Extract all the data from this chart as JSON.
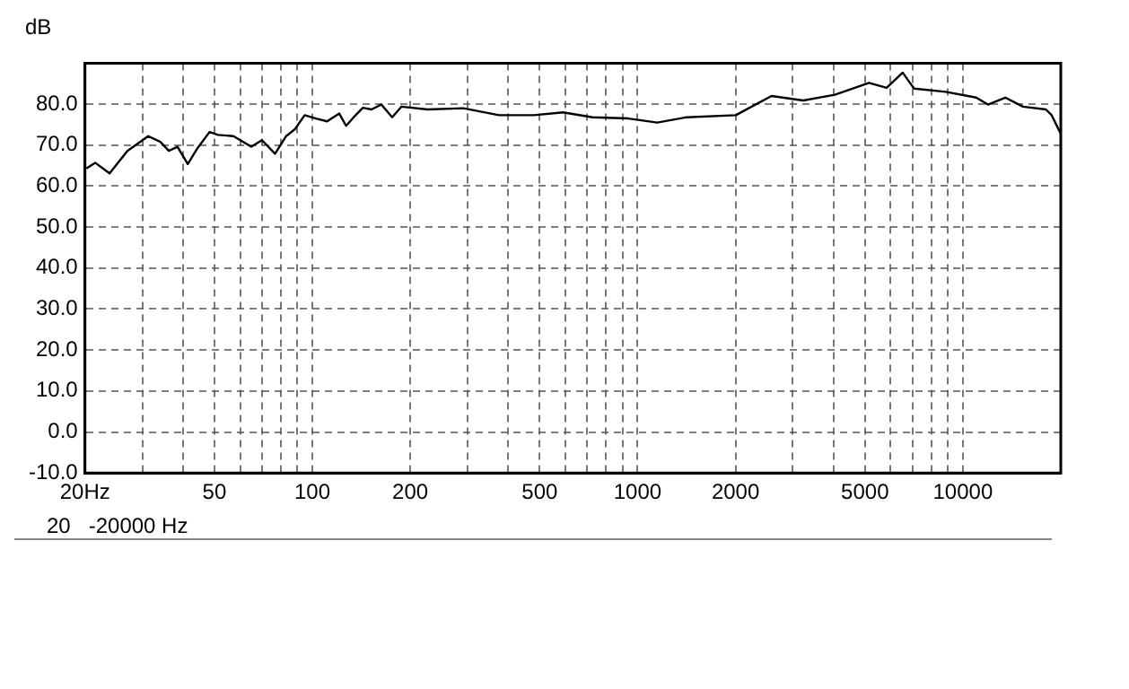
{
  "chart_data": {
    "type": "line",
    "ylabel": "dB",
    "annotations": [
      "20   -20000 Hz"
    ],
    "series": [
      {
        "color": "#000000",
        "x": [
          20.2,
          21.5,
          23.8,
          27,
          31.3,
          34.1,
          36.2,
          38.5,
          41.4,
          44.4,
          48.3,
          51.3,
          57.2,
          64.9,
          70,
          76.8,
          83.1,
          88.4,
          94.7,
          102.6,
          111,
          121,
          127,
          134,
          143,
          152,
          163,
          176,
          188,
          226,
          291,
          375,
          480,
          590,
          727,
          937,
          1150,
          1415,
          2004,
          2580,
          3230,
          4040,
          5145,
          5830,
          6530,
          7080,
          8865,
          10990,
          11940,
          13500,
          15300,
          18000,
          18750,
          19950
        ],
        "values": [
          64.3,
          65.7,
          63.1,
          68.6,
          72.2,
          70.8,
          68.6,
          69.6,
          65.4,
          69.3,
          73.2,
          72.5,
          72.2,
          69.6,
          71.2,
          67.9,
          72.2,
          73.9,
          77.3,
          76.5,
          75.8,
          77.7,
          74.7,
          76.8,
          79.1,
          78.7,
          79.9,
          76.8,
          79.4,
          78.7,
          79,
          77.3,
          77.3,
          78,
          76.8,
          76.5,
          75.5,
          76.8,
          77.3,
          82,
          80.9,
          82.3,
          85.2,
          84,
          87.7,
          83.8,
          83,
          81.6,
          79.9,
          81.6,
          79.4,
          78.7,
          77.3,
          72.9
        ]
      }
    ],
    "log": "x",
    "xlim": [
      20,
      20000
    ],
    "xticks": [
      {
        "value": 20,
        "label": "20Hz"
      },
      {
        "value": 30,
        "label": null
      },
      {
        "value": 40,
        "label": null
      },
      50,
      {
        "value": 60,
        "label": null
      },
      {
        "value": 70,
        "label": null
      },
      {
        "value": 80,
        "label": null
      },
      {
        "value": 90,
        "label": null
      },
      100,
      200,
      {
        "value": 300,
        "label": null
      },
      {
        "value": 400,
        "label": null
      },
      500,
      {
        "value": 600,
        "label": null
      },
      {
        "value": 700,
        "label": null
      },
      {
        "value": 800,
        "label": null
      },
      {
        "value": 900,
        "label": null
      },
      1000,
      2000,
      {
        "value": 3000,
        "label": null
      },
      {
        "value": 4000,
        "label": null
      },
      5000,
      {
        "value": 6000,
        "label": null
      },
      {
        "value": 7000,
        "label": null
      },
      {
        "value": 8000,
        "label": null
      },
      {
        "value": 9000,
        "label": null
      },
      10000,
      {
        "value": 20000,
        "label": null
      }
    ],
    "ylim": [
      -10,
      90
    ],
    "yticks": [
      {
        "value": -10,
        "label": "-10.0"
      },
      {
        "value": 0,
        "label": "0.0"
      },
      {
        "value": 10,
        "label": "10.0"
      },
      {
        "value": 20,
        "label": "20.0"
      },
      {
        "value": 30,
        "label": "30.0"
      },
      {
        "value": 40,
        "label": "40.0"
      },
      {
        "value": 50,
        "label": "50.0"
      },
      {
        "value": 60,
        "label": "60.0"
      },
      {
        "value": 70,
        "label": "70.0"
      },
      {
        "value": 80,
        "label": "80.0"
      },
      {
        "value": 90,
        "label": null
      }
    ],
    "grid": true,
    "legend": false,
    "marker": "none",
    "line_style": "solid"
  }
}
